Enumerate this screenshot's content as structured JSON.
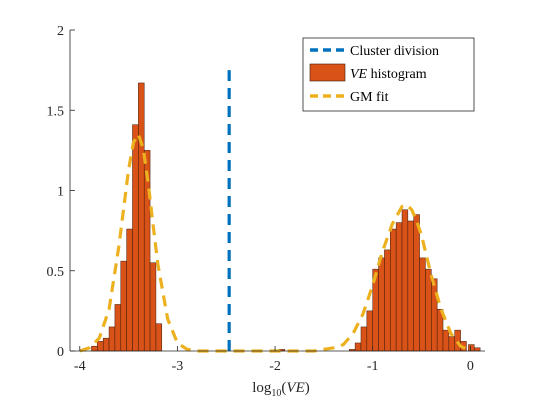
{
  "chart_data": {
    "type": "bar",
    "xlim": [
      -4.1,
      0.15
    ],
    "ylim": [
      0,
      2
    ],
    "xticks": [
      -4,
      -3,
      -2,
      -1,
      0
    ],
    "xtick_labels": [
      "-4",
      "-3",
      "-2",
      "-1",
      "0"
    ],
    "yticks": [
      0,
      0.5,
      1,
      1.5,
      2
    ],
    "ytick_labels": [
      "0",
      "0.5",
      "1",
      "1.5",
      "2"
    ],
    "xlabel": {
      "pre": "log",
      "sub": "10",
      "post": "(",
      "italic": "VE",
      "close": ")"
    },
    "legend": {
      "placement": "top-right",
      "entries": [
        {
          "key": "division",
          "text": "Cluster division",
          "italic": "",
          "after": ""
        },
        {
          "key": "hist",
          "text": "",
          "italic": "VE",
          "after": " histogram"
        },
        {
          "key": "fit",
          "text": "GM fit",
          "italic": "",
          "after": ""
        }
      ]
    },
    "colors": {
      "bar_fill": "#D95319",
      "bar_edge": "#3d1a0a",
      "division": "#0072BD",
      "fit": "#EDB120",
      "axis": "#262626"
    },
    "bin_width": 0.06,
    "histogram": [
      {
        "x": -3.97,
        "y": 0.01
      },
      {
        "x": -3.85,
        "y": 0.03
      },
      {
        "x": -3.79,
        "y": 0.06
      },
      {
        "x": -3.73,
        "y": 0.08
      },
      {
        "x": -3.67,
        "y": 0.15
      },
      {
        "x": -3.61,
        "y": 0.29
      },
      {
        "x": -3.55,
        "y": 0.56
      },
      {
        "x": -3.49,
        "y": 0.76
      },
      {
        "x": -3.43,
        "y": 1.41
      },
      {
        "x": -3.37,
        "y": 1.67
      },
      {
        "x": -3.31,
        "y": 1.25
      },
      {
        "x": -3.25,
        "y": 0.55
      },
      {
        "x": -3.19,
        "y": 0.17
      },
      {
        "x": -1.93,
        "y": 0.01
      },
      {
        "x": -1.21,
        "y": 0.01
      },
      {
        "x": -1.15,
        "y": 0.05
      },
      {
        "x": -1.09,
        "y": 0.15
      },
      {
        "x": -1.03,
        "y": 0.25
      },
      {
        "x": -0.97,
        "y": 0.51
      },
      {
        "x": -0.91,
        "y": 0.58
      },
      {
        "x": -0.85,
        "y": 0.63
      },
      {
        "x": -0.79,
        "y": 0.76
      },
      {
        "x": -0.73,
        "y": 0.8
      },
      {
        "x": -0.67,
        "y": 0.88
      },
      {
        "x": -0.61,
        "y": 0.81
      },
      {
        "x": -0.55,
        "y": 0.85
      },
      {
        "x": -0.49,
        "y": 0.58
      },
      {
        "x": -0.43,
        "y": 0.51
      },
      {
        "x": -0.37,
        "y": 0.45
      },
      {
        "x": -0.31,
        "y": 0.26
      },
      {
        "x": -0.25,
        "y": 0.13
      },
      {
        "x": -0.19,
        "y": 0.09
      },
      {
        "x": -0.13,
        "y": 0.13
      },
      {
        "x": -0.07,
        "y": 0.06
      },
      {
        "x": 0.01,
        "y": 0.04
      },
      {
        "x": 0.07,
        "y": 0.02
      }
    ],
    "division_line": {
      "x": -2.47,
      "y_range": [
        0,
        1.75
      ]
    },
    "gm_fit": {
      "x": [
        -4.0,
        -3.9,
        -3.8,
        -3.7,
        -3.6,
        -3.5,
        -3.45,
        -3.4,
        -3.35,
        -3.3,
        -3.25,
        -3.2,
        -3.1,
        -3.0,
        -2.9,
        -2.8,
        -2.6,
        -2.4,
        -2.2,
        -2.0,
        -1.8,
        -1.6,
        -1.4,
        -1.3,
        -1.2,
        -1.1,
        -1.0,
        -0.9,
        -0.8,
        -0.7,
        -0.65,
        -0.6,
        -0.55,
        -0.5,
        -0.4,
        -0.3,
        -0.2,
        -0.1,
        0.0
      ],
      "y": [
        0.0,
        0.02,
        0.08,
        0.26,
        0.65,
        1.13,
        1.3,
        1.35,
        1.26,
        1.05,
        0.79,
        0.54,
        0.2,
        0.05,
        0.01,
        0.0,
        0.0,
        0.0,
        0.0,
        0.0,
        0.0,
        0.0,
        0.02,
        0.04,
        0.11,
        0.23,
        0.41,
        0.62,
        0.79,
        0.9,
        0.91,
        0.88,
        0.81,
        0.72,
        0.47,
        0.26,
        0.11,
        0.03,
        0.0
      ]
    }
  }
}
